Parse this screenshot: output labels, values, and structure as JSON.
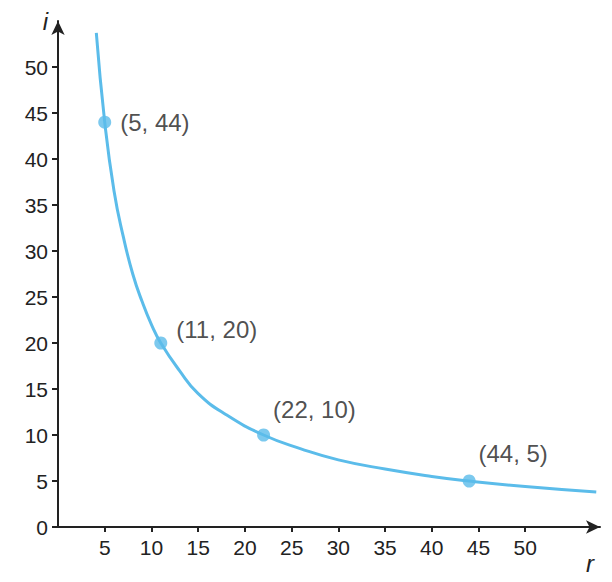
{
  "chart_data": {
    "type": "line",
    "x_label": "r",
    "y_label": "i",
    "x": [
      4.1,
      5,
      6,
      7,
      8,
      9,
      10,
      11,
      13,
      15,
      18,
      22,
      26,
      30,
      35,
      40,
      44,
      50,
      57.6
    ],
    "values": [
      53.7,
      44,
      36.5,
      31.5,
      27.5,
      24.5,
      22,
      20,
      17,
      14.5,
      12.2,
      10,
      8.5,
      7.3,
      6.3,
      5.5,
      5,
      4.4,
      3.8
    ],
    "color": "#5bbcea",
    "annotations": [
      {
        "x": 5,
        "y": 44,
        "label": "(5, 44)"
      },
      {
        "x": 11,
        "y": 20,
        "label": "(11, 20)"
      },
      {
        "x": 22,
        "y": 10,
        "label": "(22, 10)"
      },
      {
        "x": 44,
        "y": 5,
        "label": "(44, 5)"
      }
    ],
    "xlim": [
      0,
      58
    ],
    "ylim": [
      0,
      55
    ],
    "xticks": [
      5,
      10,
      15,
      20,
      25,
      30,
      35,
      40,
      45,
      50
    ],
    "yticks": [
      0,
      5,
      10,
      15,
      20,
      25,
      30,
      35,
      40,
      45,
      50
    ],
    "grid": false
  }
}
